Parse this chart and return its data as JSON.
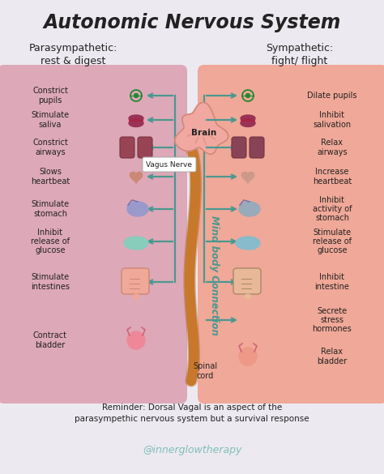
{
  "title": "Autonomic Nervous System",
  "bg_color": "#ede9f0",
  "left_panel_color": "#dda8b8",
  "right_panel_color": "#f0a898",
  "left_header": "Parasympathetic:\nrest & digest",
  "right_header": "Sympathetic:\nfight/ flight",
  "left_items": [
    "Constrict\npupils",
    "Stimulate\nsaliva",
    "Constrict\nairways",
    "Slows\nheartbeat",
    "Stimulate\nstomach",
    "Inhibit\nrelease of\nglucose",
    "Stimulate\nintestines",
    "Contract\nbladder"
  ],
  "right_items": [
    "Dilate pupils",
    "Inhibit\nsalivation",
    "Relax\nairways",
    "Increase\nheartbeat",
    "Inhibit\nactivity of\nstomach",
    "Stimulate\nrelease of\nglucose",
    "Inhibit\nintestine",
    "Secrete\nstress\nhormones",
    "Relax\nbladder"
  ],
  "brain_label": "Brain",
  "vagus_label": "Vagus Nerve",
  "mind_body_label": "Mind body Connection",
  "spinal_label": "Spinal\ncord",
  "reminder_text": "Reminder: Dorsal Vagal is an aspect of the\nparasympethic nervous system but a survival response",
  "watermark": "@innerglowtherapy",
  "spine_color": "#c8782a",
  "nerve_line_color": "#4a9890",
  "brain_color": "#f0a8a0",
  "brain_outline": "#d08878",
  "header_color": "#222222",
  "text_color": "#222222",
  "reminder_color": "#222222",
  "watermark_color": "#7dbfb8",
  "left_icon_colors": {
    "eye": "#228833",
    "lips": "#993355",
    "lungs": "#994455",
    "heart": "#cc8877",
    "stomach": "#9999cc",
    "liver": "#88ccbb",
    "intestines_fill": "#f0a898",
    "intestines_outline": "#cc8877",
    "bladder": "#ee8899"
  },
  "right_icon_colors": {
    "eye": "#228833",
    "lips": "#993355",
    "lungs": "#884455",
    "heart": "#cc9988",
    "stomach": "#99aabb",
    "liver": "#88bbcc",
    "intestines_fill": "#e8b898",
    "intestines_outline": "#aa8866",
    "bladder": "#ee9988"
  }
}
